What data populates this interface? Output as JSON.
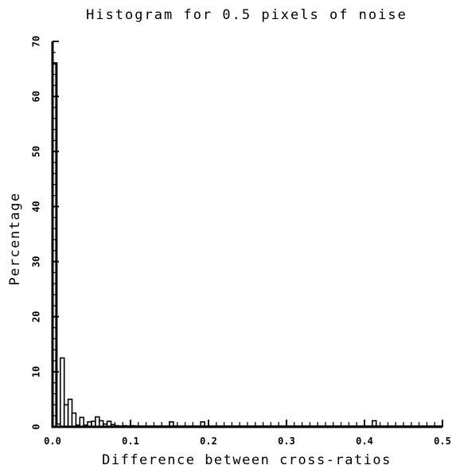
{
  "chart_data": {
    "type": "bar",
    "title": "Histogram for 0.5 pixels of noise",
    "xlabel": "Difference between cross-ratios",
    "ylabel": "Percentage",
    "xlim": [
      0,
      0.5
    ],
    "ylim": [
      0,
      70
    ],
    "x_ticks": [
      "0.0",
      "0.1",
      "0.2",
      "0.3",
      "0.4",
      "0.5"
    ],
    "y_ticks": [
      "0",
      "10",
      "20",
      "30",
      "40",
      "50",
      "60",
      "70"
    ],
    "bin_width": 0.005,
    "bins": [
      {
        "x": 0.0,
        "value": 66
      },
      {
        "x": 0.005,
        "value": 0.5
      },
      {
        "x": 0.01,
        "value": 12.5
      },
      {
        "x": 0.015,
        "value": 4
      },
      {
        "x": 0.02,
        "value": 5
      },
      {
        "x": 0.025,
        "value": 2.5
      },
      {
        "x": 0.03,
        "value": 0.3
      },
      {
        "x": 0.035,
        "value": 1.7
      },
      {
        "x": 0.04,
        "value": 0.3
      },
      {
        "x": 0.045,
        "value": 0.9
      },
      {
        "x": 0.05,
        "value": 1.0
      },
      {
        "x": 0.055,
        "value": 1.8
      },
      {
        "x": 0.06,
        "value": 1.1
      },
      {
        "x": 0.065,
        "value": 0.5
      },
      {
        "x": 0.07,
        "value": 1.0
      },
      {
        "x": 0.075,
        "value": 0.4
      },
      {
        "x": 0.08,
        "value": 0.2
      },
      {
        "x": 0.09,
        "value": 0.2
      },
      {
        "x": 0.1,
        "value": 0.2
      },
      {
        "x": 0.15,
        "value": 0.9
      },
      {
        "x": 0.19,
        "value": 0.9
      },
      {
        "x": 0.41,
        "value": 1.1
      }
    ],
    "grid": false,
    "colors": {
      "bar_fill": "#ffffff",
      "bar_stroke": "#000000",
      "axis": "#000000"
    }
  }
}
